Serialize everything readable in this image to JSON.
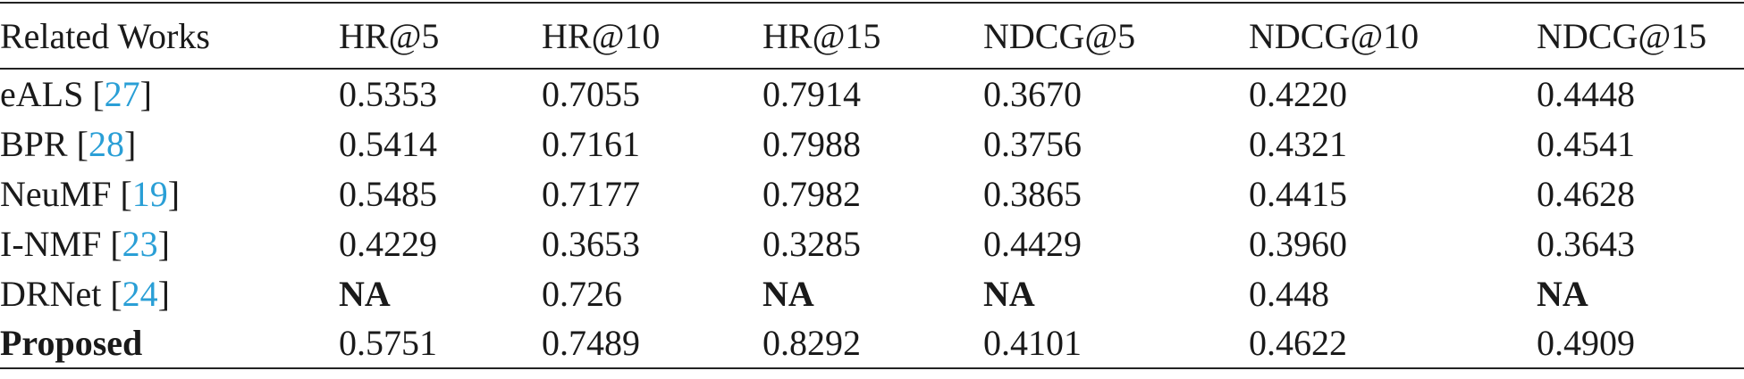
{
  "table": {
    "header": [
      "Related Works",
      "HR@5",
      "HR@10",
      "HR@15",
      "NDCG@5",
      "NDCG@10",
      "NDCG@15"
    ],
    "rows": [
      {
        "label": [
          "eALS [",
          "27",
          "]"
        ],
        "cells": [
          "0.5353",
          "0.7055",
          "0.7914",
          "0.3670",
          "0.4220",
          "0.4448"
        ]
      },
      {
        "label": [
          "BPR [",
          "28",
          "]"
        ],
        "cells": [
          "0.5414",
          "0.7161",
          "0.7988",
          "0.3756",
          "0.4321",
          "0.4541"
        ]
      },
      {
        "label": [
          "NeuMF [",
          "19",
          "]"
        ],
        "cells": [
          "0.5485",
          "0.7177",
          "0.7982",
          "0.3865",
          "0.4415",
          "0.4628"
        ]
      },
      {
        "label": [
          "I-NMF [",
          "23",
          "]"
        ],
        "cells": [
          "0.4229",
          "0.3653",
          "0.3285",
          "0.4429",
          "0.3960",
          "0.3643"
        ]
      },
      {
        "label": [
          "DRNet [",
          "24",
          "]"
        ],
        "cells": [
          "NA",
          "0.726",
          "NA",
          "NA",
          "0.448",
          "NA"
        ]
      },
      {
        "label": [
          "Proposed"
        ],
        "cells": [
          "0.5751",
          "0.7489",
          "0.8292",
          "0.4101",
          "0.4622",
          "0.4909"
        ]
      }
    ]
  }
}
